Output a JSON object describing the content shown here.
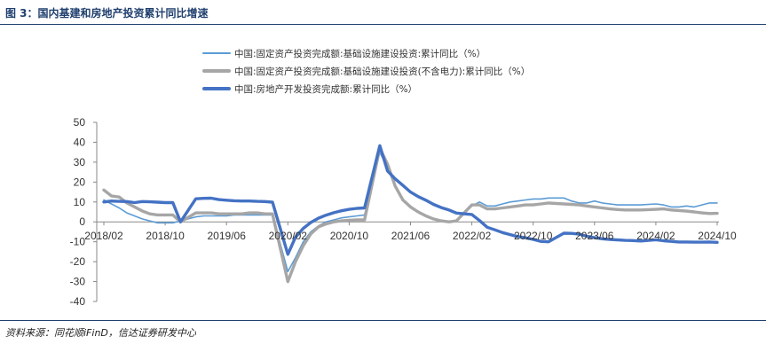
{
  "figure": {
    "title": "图 3：国内基建和房地产投资累计同比增速",
    "source": "资料来源：同花顺iFinD，信达证券研发中心"
  },
  "chart_data": {
    "type": "line",
    "title": "",
    "xlabel": "",
    "ylabel": "",
    "ylim": [
      -40,
      50
    ],
    "yticks": [
      50,
      40,
      30,
      20,
      10,
      0,
      -10,
      -20,
      -30,
      -40
    ],
    "xlim": [
      "2018/02",
      "2024/10"
    ],
    "xticks": [
      "2018/02",
      "2018/10",
      "2019/06",
      "2020/02",
      "2020/10",
      "2021/06",
      "2022/02",
      "2022/10",
      "2023/06",
      "2024/02",
      "2024/10"
    ],
    "grid": false,
    "legend_position": "top",
    "series": [
      {
        "name": "中国:固定资产投资完成额:基础设施建设投资:累计同比（%）",
        "color": "#5b9bd5",
        "width": 1.6,
        "points": [
          [
            "2018/02",
            11
          ],
          [
            "2018/03",
            9
          ],
          [
            "2018/04",
            7
          ],
          [
            "2018/05",
            4.5
          ],
          [
            "2018/06",
            3
          ],
          [
            "2018/07",
            1.5
          ],
          [
            "2018/08",
            0.5
          ],
          [
            "2018/09",
            -0.5
          ],
          [
            "2018/10",
            -0.5
          ],
          [
            "2018/11",
            -0.5
          ],
          [
            "2018/12",
            0.5
          ],
          [
            "2019/02",
            2.5
          ],
          [
            "2019/03",
            3
          ],
          [
            "2019/04",
            3
          ],
          [
            "2019/05",
            3
          ],
          [
            "2019/06",
            3
          ],
          [
            "2019/07",
            3.5
          ],
          [
            "2019/08",
            3.5
          ],
          [
            "2019/09",
            3.5
          ],
          [
            "2019/10",
            3.5
          ],
          [
            "2019/11",
            3.5
          ],
          [
            "2019/12",
            3.5
          ],
          [
            "2020/02",
            -25
          ],
          [
            "2020/03",
            -18
          ],
          [
            "2020/04",
            -10
          ],
          [
            "2020/05",
            -5
          ],
          [
            "2020/06",
            -2
          ],
          [
            "2020/07",
            0
          ],
          [
            "2020/08",
            1
          ],
          [
            "2020/09",
            2
          ],
          [
            "2020/10",
            2.5
          ],
          [
            "2020/11",
            3
          ],
          [
            "2020/12",
            3.5
          ],
          [
            "2021/02",
            35
          ],
          [
            "2021/03",
            27
          ],
          [
            "2021/04",
            18
          ],
          [
            "2021/05",
            11
          ],
          [
            "2021/06",
            8
          ],
          [
            "2021/07",
            5
          ],
          [
            "2021/08",
            3
          ],
          [
            "2021/09",
            1.5
          ],
          [
            "2021/10",
            0.5
          ],
          [
            "2021/11",
            0
          ],
          [
            "2021/12",
            0.5
          ],
          [
            "2022/02",
            8
          ],
          [
            "2022/03",
            10
          ],
          [
            "2022/04",
            8
          ],
          [
            "2022/05",
            8
          ],
          [
            "2022/06",
            9
          ],
          [
            "2022/07",
            10
          ],
          [
            "2022/08",
            10.5
          ],
          [
            "2022/09",
            11
          ],
          [
            "2022/10",
            11.5
          ],
          [
            "2022/11",
            11.5
          ],
          [
            "2022/12",
            12
          ],
          [
            "2023/02",
            12
          ],
          [
            "2023/03",
            10.5
          ],
          [
            "2023/04",
            9.5
          ],
          [
            "2023/05",
            9.5
          ],
          [
            "2023/06",
            10.5
          ],
          [
            "2023/07",
            9.5
          ],
          [
            "2023/08",
            9
          ],
          [
            "2023/09",
            8.5
          ],
          [
            "2023/10",
            8.5
          ],
          [
            "2023/11",
            8.5
          ],
          [
            "2023/12",
            8.5
          ],
          [
            "2024/02",
            9
          ],
          [
            "2024/03",
            8.5
          ],
          [
            "2024/04",
            7.5
          ],
          [
            "2024/05",
            7.5
          ],
          [
            "2024/06",
            8
          ],
          [
            "2024/07",
            7.5
          ],
          [
            "2024/08",
            8.5
          ],
          [
            "2024/09",
            9.5
          ],
          [
            "2024/10",
            9.5
          ]
        ]
      },
      {
        "name": "中国:固定资产投资完成额:基础设施建设投资(不含电力):累计同比（%）",
        "color": "#a6a6a6",
        "width": 3.4,
        "points": [
          [
            "2018/02",
            16
          ],
          [
            "2018/03",
            13
          ],
          [
            "2018/04",
            12.5
          ],
          [
            "2018/05",
            9.5
          ],
          [
            "2018/06",
            7.5
          ],
          [
            "2018/07",
            5.5
          ],
          [
            "2018/08",
            4
          ],
          [
            "2018/09",
            3.5
          ],
          [
            "2018/10",
            3.5
          ],
          [
            "2018/11",
            3.5
          ],
          [
            "2018/12",
            0
          ],
          [
            "2019/02",
            4.5
          ],
          [
            "2019/03",
            4.5
          ],
          [
            "2019/04",
            4.5
          ],
          [
            "2019/05",
            4
          ],
          [
            "2019/06",
            4
          ],
          [
            "2019/07",
            4
          ],
          [
            "2019/08",
            4
          ],
          [
            "2019/09",
            4.5
          ],
          [
            "2019/10",
            4.5
          ],
          [
            "2019/11",
            4
          ],
          [
            "2019/12",
            4
          ],
          [
            "2020/02",
            -30
          ],
          [
            "2020/03",
            -20
          ],
          [
            "2020/04",
            -12
          ],
          [
            "2020/05",
            -6
          ],
          [
            "2020/06",
            -2.5
          ],
          [
            "2020/07",
            -1
          ],
          [
            "2020/08",
            0
          ],
          [
            "2020/09",
            0.5
          ],
          [
            "2020/10",
            0.8
          ],
          [
            "2020/11",
            1
          ],
          [
            "2020/12",
            1
          ],
          [
            "2021/02",
            37
          ],
          [
            "2021/03",
            29
          ],
          [
            "2021/04",
            18
          ],
          [
            "2021/05",
            11
          ],
          [
            "2021/06",
            7.5
          ],
          [
            "2021/07",
            5
          ],
          [
            "2021/08",
            3
          ],
          [
            "2021/09",
            1.5
          ],
          [
            "2021/10",
            0.5
          ],
          [
            "2021/11",
            0
          ],
          [
            "2021/12",
            0.5
          ],
          [
            "2022/02",
            8.5
          ],
          [
            "2022/03",
            8.5
          ],
          [
            "2022/04",
            6.5
          ],
          [
            "2022/05",
            6.5
          ],
          [
            "2022/06",
            7
          ],
          [
            "2022/07",
            7.5
          ],
          [
            "2022/08",
            8
          ],
          [
            "2022/09",
            8.5
          ],
          [
            "2022/10",
            8.5
          ],
          [
            "2022/11",
            9
          ],
          [
            "2022/12",
            9.5
          ],
          [
            "2023/02",
            9
          ],
          [
            "2023/03",
            8.8
          ],
          [
            "2023/04",
            8.5
          ],
          [
            "2023/05",
            8
          ],
          [
            "2023/06",
            7.5
          ],
          [
            "2023/07",
            7
          ],
          [
            "2023/08",
            6.5
          ],
          [
            "2023/09",
            6.2
          ],
          [
            "2023/10",
            6
          ],
          [
            "2023/11",
            6
          ],
          [
            "2023/12",
            6
          ],
          [
            "2024/02",
            6.3
          ],
          [
            "2024/03",
            6.5
          ],
          [
            "2024/04",
            6
          ],
          [
            "2024/05",
            5.7
          ],
          [
            "2024/06",
            5.4
          ],
          [
            "2024/07",
            5
          ],
          [
            "2024/08",
            4.5
          ],
          [
            "2024/09",
            4.2
          ],
          [
            "2024/10",
            4.3
          ]
        ]
      },
      {
        "name": "中国:房地产开发投资完成额:累计同比（%）",
        "color": "#4472c4",
        "width": 3.4,
        "points": [
          [
            "2018/02",
            10
          ],
          [
            "2018/03",
            10.5
          ],
          [
            "2018/04",
            10.3
          ],
          [
            "2018/05",
            10.2
          ],
          [
            "2018/06",
            9.7
          ],
          [
            "2018/07",
            10.2
          ],
          [
            "2018/08",
            10.1
          ],
          [
            "2018/09",
            9.9
          ],
          [
            "2018/10",
            9.7
          ],
          [
            "2018/11",
            9.7
          ],
          [
            "2018/12",
            0
          ],
          [
            "2019/02",
            11.6
          ],
          [
            "2019/03",
            11.8
          ],
          [
            "2019/04",
            11.9
          ],
          [
            "2019/05",
            11.2
          ],
          [
            "2019/06",
            10.9
          ],
          [
            "2019/07",
            10.6
          ],
          [
            "2019/08",
            10.5
          ],
          [
            "2019/09",
            10.5
          ],
          [
            "2019/10",
            10.3
          ],
          [
            "2019/11",
            10.2
          ],
          [
            "2019/12",
            9.9
          ],
          [
            "2020/02",
            -16.3
          ],
          [
            "2020/03",
            -7.7
          ],
          [
            "2020/04",
            -3.3
          ],
          [
            "2020/05",
            -0.3
          ],
          [
            "2020/06",
            1.9
          ],
          [
            "2020/07",
            3.4
          ],
          [
            "2020/08",
            4.6
          ],
          [
            "2020/09",
            5.6
          ],
          [
            "2020/10",
            6.3
          ],
          [
            "2020/11",
            6.8
          ],
          [
            "2020/12",
            7
          ],
          [
            "2021/02",
            38.3
          ],
          [
            "2021/03",
            25.6
          ],
          [
            "2021/04",
            21.6
          ],
          [
            "2021/05",
            18.3
          ],
          [
            "2021/06",
            15
          ],
          [
            "2021/07",
            12.7
          ],
          [
            "2021/08",
            10.9
          ],
          [
            "2021/09",
            8.8
          ],
          [
            "2021/10",
            7.2
          ],
          [
            "2021/11",
            6
          ],
          [
            "2021/12",
            4.4
          ],
          [
            "2022/02",
            3.7
          ],
          [
            "2022/03",
            0.7
          ],
          [
            "2022/04",
            -2.7
          ],
          [
            "2022/05",
            -4
          ],
          [
            "2022/06",
            -5.4
          ],
          [
            "2022/07",
            -6.4
          ],
          [
            "2022/08",
            -7.4
          ],
          [
            "2022/09",
            -8
          ],
          [
            "2022/10",
            -8.8
          ],
          [
            "2022/11",
            -9.8
          ],
          [
            "2022/12",
            -10
          ],
          [
            "2023/02",
            -5.7
          ],
          [
            "2023/03",
            -5.8
          ],
          [
            "2023/04",
            -6.2
          ],
          [
            "2023/05",
            -7.2
          ],
          [
            "2023/06",
            -7.9
          ],
          [
            "2023/07",
            -8.5
          ],
          [
            "2023/08",
            -8.8
          ],
          [
            "2023/09",
            -9.1
          ],
          [
            "2023/10",
            -9.3
          ],
          [
            "2023/11",
            -9.4
          ],
          [
            "2023/12",
            -9.6
          ],
          [
            "2024/02",
            -9
          ],
          [
            "2024/03",
            -9.5
          ],
          [
            "2024/04",
            -9.8
          ],
          [
            "2024/05",
            -10.1
          ],
          [
            "2024/06",
            -10.1
          ],
          [
            "2024/07",
            -10.2
          ],
          [
            "2024/08",
            -10.2
          ],
          [
            "2024/09",
            -10.1
          ],
          [
            "2024/10",
            -10.3
          ]
        ]
      }
    ]
  }
}
